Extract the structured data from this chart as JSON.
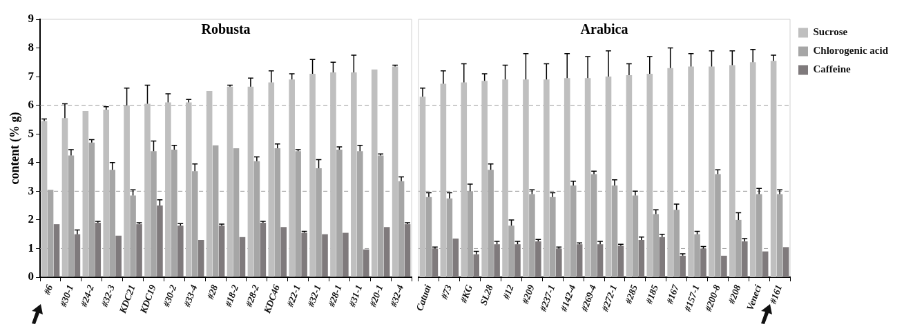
{
  "chart_data": [
    {
      "type": "bar",
      "title": "Robusta",
      "ylabel": "content (% g)",
      "categories": [
        "#6",
        "#30-1",
        "#24-2",
        "#32-3",
        "KDC21",
        "KDC19",
        "#30-2",
        "#33-4",
        "#28",
        "#18-2",
        "#28-2",
        "KDC46",
        "#22-1",
        "#32-1",
        "#28-1",
        "#31-1",
        "#20-1",
        "#32-4"
      ],
      "series": [
        {
          "color": "#bfbfbf",
          "values": [
            5.45,
            5.55,
            5.8,
            5.85,
            6.0,
            6.05,
            6.1,
            6.1,
            6.5,
            6.65,
            6.65,
            6.8,
            6.9,
            7.1,
            7.15,
            7.15,
            7.25,
            7.35
          ],
          "errors": [
            [
              5.45,
              5.52
            ],
            [
              5.55,
              6.05
            ],
            null,
            [
              5.85,
              5.95
            ],
            [
              6.0,
              6.6
            ],
            [
              6.05,
              6.7
            ],
            [
              6.1,
              6.4
            ],
            [
              6.1,
              6.2
            ],
            null,
            [
              6.65,
              6.7
            ],
            [
              6.65,
              6.95
            ],
            [
              6.8,
              7.2
            ],
            [
              6.9,
              7.1
            ],
            [
              7.1,
              7.6
            ],
            [
              7.15,
              7.5
            ],
            [
              7.15,
              7.75
            ],
            null,
            [
              7.35,
              7.4
            ]
          ]
        },
        {
          "color": "#a6a6a6",
          "values": [
            3.05,
            4.25,
            4.7,
            3.75,
            2.85,
            4.4,
            4.45,
            3.7,
            4.6,
            4.5,
            4.05,
            4.5,
            4.4,
            3.8,
            4.45,
            4.4,
            4.25,
            3.35
          ],
          "errors": [
            null,
            [
              4.25,
              4.45
            ],
            [
              4.7,
              4.8
            ],
            [
              3.75,
              4.0
            ],
            [
              2.85,
              3.05
            ],
            [
              4.4,
              4.75
            ],
            [
              4.45,
              4.6
            ],
            [
              3.7,
              3.95
            ],
            null,
            null,
            [
              4.05,
              4.2
            ],
            [
              4.5,
              4.65
            ],
            [
              4.4,
              4.45
            ],
            [
              3.8,
              4.1
            ],
            [
              4.45,
              4.55
            ],
            [
              4.4,
              4.6
            ],
            [
              4.25,
              4.3
            ],
            [
              3.35,
              3.5
            ]
          ]
        },
        {
          "color": "#7f7a7c",
          "values": [
            1.85,
            1.5,
            1.9,
            1.45,
            1.85,
            2.5,
            1.8,
            1.3,
            1.8,
            1.4,
            1.9,
            1.75,
            1.55,
            1.5,
            1.55,
            0.97,
            1.75,
            1.85
          ],
          "errors": [
            null,
            [
              1.5,
              1.65
            ],
            [
              1.9,
              1.95
            ],
            null,
            [
              1.85,
              1.9
            ],
            [
              2.5,
              2.7
            ],
            [
              1.8,
              1.87
            ],
            null,
            [
              1.8,
              1.85
            ],
            null,
            [
              1.9,
              1.95
            ],
            null,
            [
              1.55,
              1.6
            ],
            null,
            null,
            null,
            null,
            [
              1.85,
              1.9
            ]
          ]
        }
      ],
      "ylim": [
        0,
        9
      ],
      "yticks": [
        0,
        1,
        2,
        3,
        4,
        5,
        6,
        7,
        8,
        9
      ],
      "ref_lines": [
        {
          "axis": "y",
          "value": 1,
          "color": "#999999",
          "line_style": "dashed"
        },
        {
          "axis": "y",
          "value": 3,
          "color": "#999999",
          "line_style": "dashed"
        },
        {
          "axis": "y",
          "value": 6,
          "color": "#999999",
          "line_style": "dashed"
        }
      ]
    },
    {
      "type": "bar",
      "title": "Arabica",
      "categories": [
        "Catuai",
        "#73",
        "#KG",
        "SL28",
        "#12",
        "#209",
        "#237-1",
        "#142-4",
        "#269-4",
        "#272-1",
        "#285",
        "#185",
        "#167",
        "#157-1",
        "#200-8",
        "#208",
        "Veneci",
        "#161"
      ],
      "series": [
        {
          "name": "Sucrose",
          "color": "#bfbfbf",
          "values": [
            6.3,
            6.75,
            6.8,
            6.85,
            6.9,
            6.9,
            6.9,
            6.95,
            6.95,
            7.0,
            7.05,
            7.1,
            7.3,
            7.35,
            7.35,
            7.4,
            7.5,
            7.55
          ],
          "errors": [
            [
              6.3,
              6.6
            ],
            [
              6.75,
              7.2
            ],
            [
              6.8,
              7.45
            ],
            [
              6.85,
              7.1
            ],
            [
              6.9,
              7.4
            ],
            [
              6.9,
              7.8
            ],
            [
              6.9,
              7.45
            ],
            [
              6.95,
              7.8
            ],
            [
              6.95,
              7.7
            ],
            [
              7.0,
              7.9
            ],
            [
              7.05,
              7.45
            ],
            [
              7.1,
              7.7
            ],
            [
              7.3,
              8.0
            ],
            [
              7.35,
              7.8
            ],
            [
              7.35,
              7.9
            ],
            [
              7.4,
              7.9
            ],
            [
              7.5,
              7.95
            ],
            [
              7.55,
              7.75
            ]
          ]
        },
        {
          "name": "Chlorogenic acid",
          "color": "#a6a6a6",
          "values": [
            2.8,
            2.75,
            3.0,
            3.75,
            1.8,
            2.9,
            2.8,
            3.2,
            3.6,
            3.2,
            2.85,
            2.2,
            2.35,
            1.5,
            3.6,
            2.0,
            2.9,
            2.9
          ],
          "errors": [
            [
              2.8,
              2.95
            ],
            [
              2.75,
              2.95
            ],
            [
              3.0,
              3.25
            ],
            [
              3.75,
              3.95
            ],
            [
              1.8,
              2.0
            ],
            [
              2.9,
              3.05
            ],
            [
              2.8,
              2.95
            ],
            [
              3.2,
              3.35
            ],
            [
              3.6,
              3.7
            ],
            [
              3.2,
              3.4
            ],
            [
              2.85,
              3.0
            ],
            [
              2.2,
              2.35
            ],
            [
              2.35,
              2.55
            ],
            [
              1.5,
              1.6
            ],
            [
              3.6,
              3.75
            ],
            [
              2.0,
              2.25
            ],
            [
              2.9,
              3.1
            ],
            [
              2.9,
              3.05
            ]
          ]
        },
        {
          "name": "Caffeine",
          "color": "#7f7a7c",
          "values": [
            1.0,
            1.35,
            0.8,
            1.15,
            1.15,
            1.25,
            1.0,
            1.15,
            1.15,
            1.1,
            1.3,
            1.4,
            0.75,
            1.0,
            0.75,
            1.25,
            0.9,
            1.05
          ],
          "errors": [
            [
              1.0,
              1.05
            ],
            null,
            [
              0.8,
              0.9
            ],
            [
              1.15,
              1.25
            ],
            [
              1.15,
              1.25
            ],
            [
              1.25,
              1.32
            ],
            [
              1.0,
              1.05
            ],
            [
              1.15,
              1.2
            ],
            [
              1.15,
              1.25
            ],
            [
              1.1,
              1.15
            ],
            [
              1.3,
              1.4
            ],
            [
              1.4,
              1.5
            ],
            [
              0.75,
              0.82
            ],
            [
              1.0,
              1.07
            ],
            null,
            [
              1.25,
              1.35
            ],
            null,
            null
          ]
        }
      ],
      "ylim": [
        0,
        9
      ],
      "yticks": [
        0,
        1,
        2,
        3,
        4,
        5,
        6,
        7,
        8,
        9
      ],
      "tick_labels": "x",
      "legend": "top right",
      "ref_lines": [
        {
          "axis": "y",
          "value": 1,
          "color": "#999999",
          "line_style": "dashed"
        },
        {
          "axis": "y",
          "value": 3,
          "color": "#999999",
          "line_style": "dashed"
        },
        {
          "axis": "y",
          "value": 6,
          "color": "#999999",
          "line_style": "dashed"
        }
      ]
    }
  ]
}
